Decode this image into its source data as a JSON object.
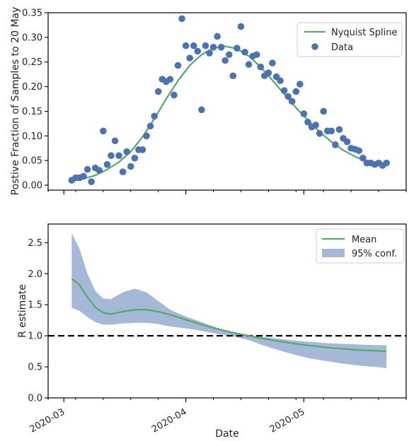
{
  "colors": {
    "line": "#55a868",
    "points": "#4c72b0",
    "band": "#4c72b0",
    "reference": "#000000",
    "axes": "#000000"
  },
  "chart_data": [
    {
      "id": "top",
      "type": "scatter",
      "title": "",
      "xlabel": "",
      "ylabel": "Postive Fraction of Samples to 20 May",
      "ylim": [
        -0.01,
        0.35
      ],
      "yticks": [
        "0.00",
        "0.05",
        "0.10",
        "0.15",
        "0.20",
        "0.25",
        "0.30",
        "0.35"
      ],
      "xlim": [
        "2020-02-26",
        "2020-05-27"
      ],
      "xticks": [
        "2020-03-01",
        "2020-04-01",
        "2020-05-01"
      ],
      "grid": false,
      "legend_position": "top-right",
      "legend": [
        "Nyquist Spline",
        "Data"
      ],
      "series": [
        {
          "name": "Data",
          "kind": "points",
          "x": [
            "2020-03-03",
            "2020-03-04",
            "2020-03-05",
            "2020-03-06",
            "2020-03-07",
            "2020-03-08",
            "2020-03-09",
            "2020-03-10",
            "2020-03-11",
            "2020-03-12",
            "2020-03-13",
            "2020-03-14",
            "2020-03-15",
            "2020-03-16",
            "2020-03-17",
            "2020-03-18",
            "2020-03-19",
            "2020-03-20",
            "2020-03-21",
            "2020-03-22",
            "2020-03-23",
            "2020-03-24",
            "2020-03-25",
            "2020-03-26",
            "2020-03-27",
            "2020-03-28",
            "2020-03-29",
            "2020-03-30",
            "2020-03-31",
            "2020-04-01",
            "2020-04-02",
            "2020-04-03",
            "2020-04-04",
            "2020-04-05",
            "2020-04-06",
            "2020-04-07",
            "2020-04-08",
            "2020-04-09",
            "2020-04-10",
            "2020-04-11",
            "2020-04-12",
            "2020-04-13",
            "2020-04-14",
            "2020-04-15",
            "2020-04-16",
            "2020-04-17",
            "2020-04-18",
            "2020-04-19",
            "2020-04-20",
            "2020-04-21",
            "2020-04-22",
            "2020-04-23",
            "2020-04-24",
            "2020-04-25",
            "2020-04-26",
            "2020-04-27",
            "2020-04-28",
            "2020-04-29",
            "2020-04-30",
            "2020-05-01",
            "2020-05-02",
            "2020-05-03",
            "2020-05-04",
            "2020-05-05",
            "2020-05-06",
            "2020-05-07",
            "2020-05-08",
            "2020-05-09",
            "2020-05-10",
            "2020-05-11",
            "2020-05-12",
            "2020-05-13",
            "2020-05-14",
            "2020-05-15",
            "2020-05-16",
            "2020-05-17",
            "2020-05-18",
            "2020-05-19",
            "2020-05-20",
            "2020-05-21",
            "2020-05-22"
          ],
          "y": [
            0.01,
            0.015,
            0.015,
            0.018,
            0.032,
            0.007,
            0.035,
            0.03,
            0.11,
            0.042,
            0.06,
            0.09,
            0.06,
            0.027,
            0.068,
            0.038,
            0.055,
            0.072,
            0.072,
            0.1,
            0.12,
            0.14,
            0.19,
            0.215,
            0.21,
            0.215,
            0.183,
            0.243,
            0.338,
            0.283,
            0.258,
            0.283,
            0.272,
            0.153,
            0.283,
            0.268,
            0.28,
            0.302,
            0.28,
            0.253,
            0.265,
            0.222,
            0.278,
            0.322,
            0.27,
            0.245,
            0.262,
            0.265,
            0.24,
            0.222,
            0.228,
            0.248,
            0.22,
            0.212,
            0.192,
            0.18,
            0.17,
            0.19,
            0.205,
            0.145,
            0.128,
            0.118,
            0.122,
            0.105,
            0.15,
            0.11,
            0.11,
            0.082,
            0.113,
            0.095,
            0.088,
            0.075,
            0.073,
            0.07,
            0.055,
            0.045,
            0.045,
            0.042,
            0.045,
            0.04,
            0.045
          ]
        },
        {
          "name": "Nyquist Spline",
          "kind": "line",
          "x": [
            "2020-03-03",
            "2020-03-06",
            "2020-03-09",
            "2020-03-12",
            "2020-03-15",
            "2020-03-18",
            "2020-03-21",
            "2020-03-24",
            "2020-03-27",
            "2020-03-30",
            "2020-04-02",
            "2020-04-05",
            "2020-04-08",
            "2020-04-11",
            "2020-04-14",
            "2020-04-17",
            "2020-04-20",
            "2020-04-23",
            "2020-04-26",
            "2020-04-29",
            "2020-05-02",
            "2020-05-05",
            "2020-05-08",
            "2020-05-11",
            "2020-05-14",
            "2020-05-17",
            "2020-05-20",
            "2020-05-22"
          ],
          "y": [
            0.008,
            0.013,
            0.02,
            0.032,
            0.047,
            0.068,
            0.098,
            0.135,
            0.175,
            0.212,
            0.243,
            0.265,
            0.278,
            0.282,
            0.277,
            0.262,
            0.24,
            0.213,
            0.185,
            0.157,
            0.132,
            0.108,
            0.088,
            0.071,
            0.058,
            0.048,
            0.042,
            0.04
          ]
        }
      ]
    },
    {
      "id": "bottom",
      "type": "line",
      "title": "",
      "xlabel": "Date",
      "ylabel": "R estimate",
      "ylim": [
        0.0,
        2.8
      ],
      "yticks": [
        "0.0",
        "0.5",
        "1.0",
        "1.5",
        "2.0",
        "2.5"
      ],
      "xlim": [
        "2020-02-26",
        "2020-05-27"
      ],
      "xticks": [
        "2020-03-01",
        "2020-04-01",
        "2020-05-01"
      ],
      "xtick_labels": [
        "2020-03",
        "2020-04",
        "2020-05"
      ],
      "reference_line": 1.0,
      "grid": false,
      "legend_position": "top-right",
      "legend": [
        "Mean",
        "95% conf."
      ],
      "series": [
        {
          "name": "Mean",
          "kind": "line",
          "x": [
            "2020-03-03",
            "2020-03-05",
            "2020-03-07",
            "2020-03-09",
            "2020-03-11",
            "2020-03-13",
            "2020-03-16",
            "2020-03-19",
            "2020-03-22",
            "2020-03-25",
            "2020-03-28",
            "2020-04-01",
            "2020-04-05",
            "2020-04-09",
            "2020-04-13",
            "2020-04-17",
            "2020-04-21",
            "2020-04-25",
            "2020-04-29",
            "2020-05-03",
            "2020-05-07",
            "2020-05-11",
            "2020-05-15",
            "2020-05-19",
            "2020-05-22"
          ],
          "y": [
            1.92,
            1.82,
            1.62,
            1.46,
            1.37,
            1.35,
            1.39,
            1.42,
            1.42,
            1.39,
            1.34,
            1.26,
            1.18,
            1.11,
            1.05,
            1.0,
            0.95,
            0.91,
            0.87,
            0.84,
            0.81,
            0.79,
            0.77,
            0.76,
            0.75
          ]
        },
        {
          "name": "95% conf.",
          "kind": "band",
          "x": [
            "2020-03-03",
            "2020-03-05",
            "2020-03-07",
            "2020-03-09",
            "2020-03-11",
            "2020-03-13",
            "2020-03-16",
            "2020-03-19",
            "2020-03-22",
            "2020-03-25",
            "2020-03-28",
            "2020-04-01",
            "2020-04-05",
            "2020-04-09",
            "2020-04-13",
            "2020-04-17",
            "2020-04-21",
            "2020-04-25",
            "2020-04-29",
            "2020-05-03",
            "2020-05-07",
            "2020-05-11",
            "2020-05-15",
            "2020-05-19",
            "2020-05-22"
          ],
          "lower": [
            1.45,
            1.4,
            1.3,
            1.22,
            1.18,
            1.18,
            1.2,
            1.21,
            1.21,
            1.19,
            1.15,
            1.12,
            1.08,
            1.03,
            0.99,
            0.93,
            0.84,
            0.76,
            0.69,
            0.63,
            0.59,
            0.55,
            0.52,
            0.5,
            0.48
          ],
          "upper": [
            2.65,
            2.4,
            2.0,
            1.72,
            1.6,
            1.59,
            1.7,
            1.76,
            1.7,
            1.56,
            1.42,
            1.31,
            1.22,
            1.13,
            1.06,
            1.01,
            0.98,
            0.95,
            0.92,
            0.9,
            0.88,
            0.87,
            0.86,
            0.85,
            0.85
          ]
        }
      ]
    }
  ]
}
